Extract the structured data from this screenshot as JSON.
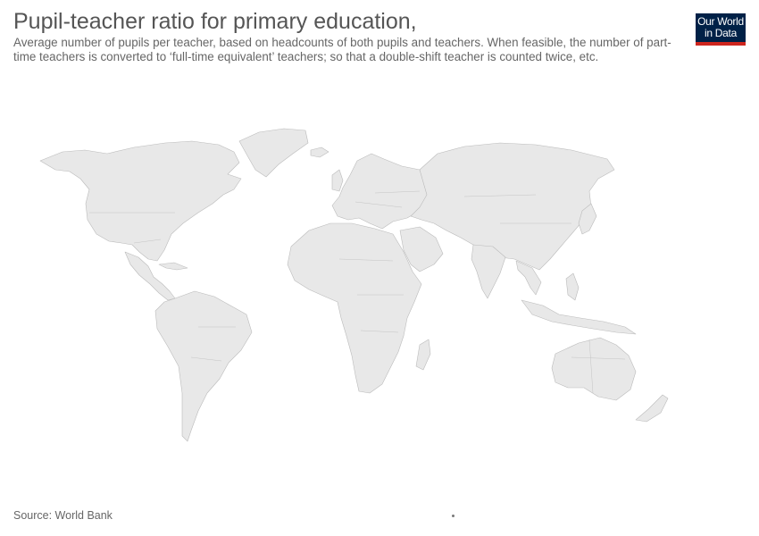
{
  "header": {
    "title": "Pupil-teacher ratio for primary education,",
    "subtitle": "Average number of pupils per teacher, based on headcounts of both pupils and teachers. When feasible, the number of part-time teachers is converted to ‘full-time equivalent’ teachers; so that a double-shift teacher is counted twice, etc."
  },
  "logo": {
    "line1": "Our World",
    "line2": "in Data",
    "background": "#002147",
    "accent": "#ce261e"
  },
  "map": {
    "land_color": "#e8e8e8",
    "border_color": "#bbbbbb",
    "regions": [
      "north-america",
      "greenland",
      "central-america",
      "south-america",
      "europe",
      "africa",
      "madagascar",
      "asia",
      "arabia",
      "india",
      "southeast-asia",
      "japan",
      "indonesia",
      "australia",
      "new-zealand",
      "uk",
      "iceland"
    ]
  },
  "footer": {
    "source": "Source: World Bank"
  }
}
